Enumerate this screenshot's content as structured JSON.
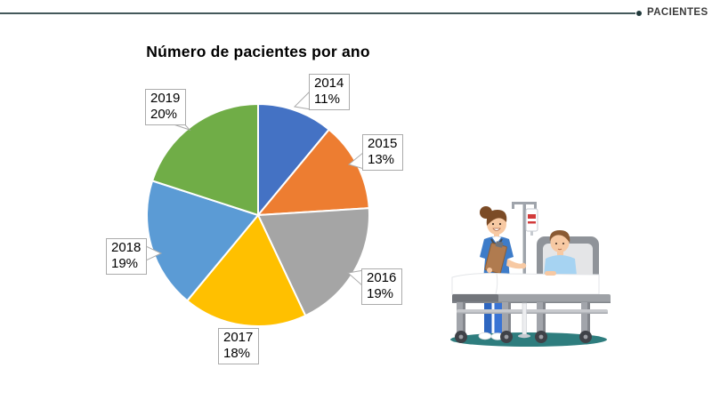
{
  "slide": {
    "background": "#FFFFFF"
  },
  "header": {
    "label": "PACIENTES",
    "line_color": "#44595B",
    "bullet_color": "#21393B",
    "label_color": "#3B3B3B"
  },
  "chart_data": {
    "type": "pie",
    "title": "Número de pacientes por ano",
    "categories": [
      "2014",
      "2015",
      "2016",
      "2017",
      "2018",
      "2019"
    ],
    "values": [
      11,
      13,
      19,
      18,
      19,
      20
    ],
    "unit": "%",
    "direction": "clockwise",
    "start_angle_deg": 0,
    "legend": "none",
    "label_style": "callout-year-percent",
    "slices": [
      {
        "year": "2014",
        "value": 11,
        "pct_label": "11%",
        "color": "#4472C4"
      },
      {
        "year": "2015",
        "value": 13,
        "pct_label": "13%",
        "color": "#ED7D31"
      },
      {
        "year": "2016",
        "value": 19,
        "pct_label": "19%",
        "color": "#A5A5A5"
      },
      {
        "year": "2017",
        "value": 18,
        "pct_label": "18%",
        "color": "#FFC000"
      },
      {
        "year": "2018",
        "value": 19,
        "pct_label": "19%",
        "color": "#5B9BD5"
      },
      {
        "year": "2019",
        "value": 20,
        "pct_label": "20%",
        "color": "#70AD47"
      }
    ]
  },
  "illustration": {
    "name": "nurse-and-patient-hospital-bed",
    "elements": [
      "nurse",
      "clipboard",
      "stethoscope",
      "iv-pole",
      "iv-bag",
      "patient",
      "hospital-bed",
      "ground-shadow"
    ]
  }
}
